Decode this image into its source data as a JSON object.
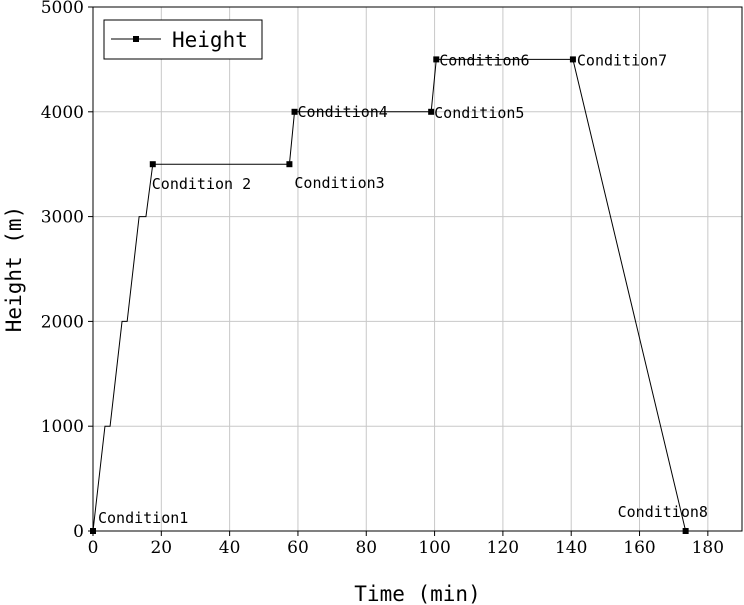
{
  "chart_data": {
    "type": "line",
    "xlabel": "Time (min)",
    "ylabel": "Height (m)",
    "xlim": [
      0,
      190
    ],
    "ylim": [
      0,
      5000
    ],
    "x_ticks": [
      0,
      20,
      40,
      60,
      80,
      100,
      120,
      140,
      160,
      180
    ],
    "y_ticks": [
      0,
      1000,
      2000,
      3000,
      4000,
      5000
    ],
    "grid": true,
    "legend_position": "top-left",
    "series": [
      {
        "name": "Height",
        "color": "#000000",
        "marker": "square",
        "x": [
          0,
          3.5,
          5,
          8.5,
          10,
          13.5,
          15.5,
          17.5,
          57.5,
          59,
          99,
          100.5,
          140.5,
          173.5
        ],
        "y": [
          0,
          1000,
          1000,
          2000,
          2000,
          3000,
          3000,
          3500,
          3500,
          4000,
          4000,
          4500,
          4500,
          0
        ]
      }
    ],
    "annotations": [
      {
        "text": "Condition1",
        "x": 0,
        "y": 0
      },
      {
        "text": "Condition 2",
        "x": 17.5,
        "y": 3500
      },
      {
        "text": "Condition3",
        "x": 57.5,
        "y": 3500
      },
      {
        "text": "Condition4",
        "x": 59,
        "y": 4000
      },
      {
        "text": "Condition5",
        "x": 99,
        "y": 4000
      },
      {
        "text": "Condition6",
        "x": 100.5,
        "y": 4500
      },
      {
        "text": "Condition7",
        "x": 140.5,
        "y": 4500
      },
      {
        "text": "Condition8",
        "x": 173.5,
        "y": 0
      }
    ]
  }
}
